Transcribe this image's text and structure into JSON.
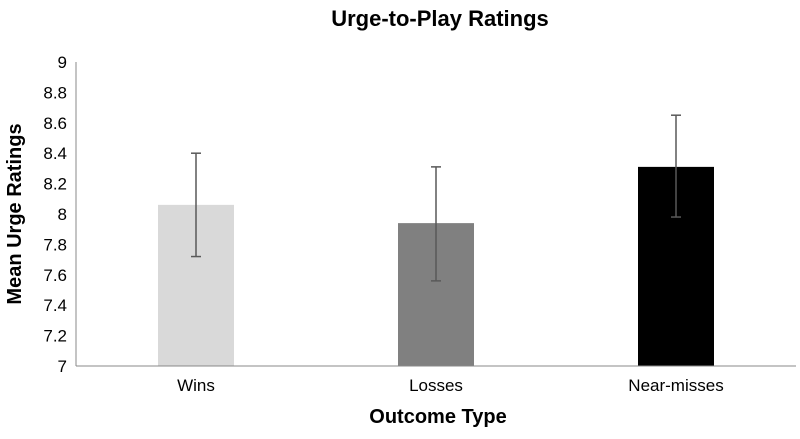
{
  "chart_data": {
    "type": "bar",
    "title": "Urge-to-Play Ratings",
    "xlabel": "Outcome Type",
    "ylabel": "Mean Urge Ratings",
    "categories": [
      "Wins",
      "Losses",
      "Near-misses"
    ],
    "values": [
      8.06,
      7.94,
      8.31
    ],
    "error_low": [
      7.72,
      7.56,
      7.98
    ],
    "error_high": [
      8.4,
      8.31,
      8.65
    ],
    "bar_colors": [
      "#d9d9d9",
      "#808080",
      "#000000"
    ],
    "error_bar_color": "#595959",
    "axis_color": "#888888",
    "ylim": [
      7,
      9
    ],
    "yticks": [
      "7",
      "7.2",
      "7.4",
      "7.6",
      "7.8",
      "8",
      "8.2",
      "8.4",
      "8.6",
      "8.8",
      "9"
    ],
    "grid": false,
    "legend": "none"
  }
}
